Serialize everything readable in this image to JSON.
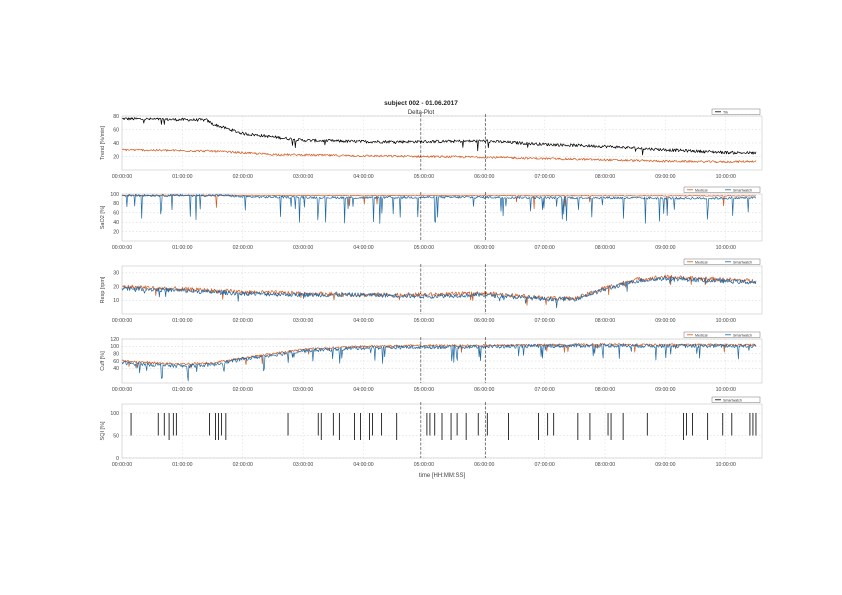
{
  "chart_data": {
    "type": "line",
    "title": "subject 002 - 01.06.2017",
    "subtitle": "Delta-Plot",
    "xlabel": "time [HH:MM:SS]",
    "x_ticks": [
      "00:00:00",
      "01:00:00",
      "02:00:00",
      "03:00:00",
      "04:00:00",
      "05:00:00",
      "06:00:00",
      "07:00:00",
      "08:00:00",
      "09:00:00",
      "10:00:00"
    ],
    "x_range_hours": [
      0,
      10.6
    ],
    "event_markers_hours": [
      4.95,
      6.02
    ],
    "panels": [
      {
        "ylabel": "Trend [%/min]",
        "ylim": [
          0,
          80
        ],
        "yticks": [
          "80",
          "60",
          "40",
          "20"
        ],
        "legend": [
          "Trk"
        ],
        "series": [
          {
            "name": "Trk",
            "color": "#000000",
            "anchors": [
              [
                0,
                76
              ],
              [
                1.4,
                74
              ],
              [
                1.5,
                68
              ],
              [
                2.0,
                54
              ],
              [
                3.0,
                44
              ],
              [
                4.0,
                42
              ],
              [
                5.0,
                42
              ],
              [
                6.0,
                43
              ],
              [
                7.0,
                38
              ],
              [
                8.0,
                35
              ],
              [
                9.0,
                30
              ],
              [
                10.0,
                26
              ],
              [
                10.5,
                25
              ]
            ]
          },
          {
            "name": "",
            "color": "#d45a1e",
            "anchors": [
              [
                0,
                30
              ],
              [
                1.5,
                28
              ],
              [
                2.5,
                23
              ],
              [
                4.0,
                21
              ],
              [
                5.0,
                20
              ],
              [
                6.0,
                19
              ],
              [
                7.0,
                17
              ],
              [
                8.0,
                15
              ],
              [
                9.0,
                13
              ],
              [
                10.0,
                12
              ],
              [
                10.5,
                13
              ]
            ]
          }
        ]
      },
      {
        "ylabel": "SaO2 [%]",
        "ylim": [
          0,
          100
        ],
        "yticks": [
          "100",
          "80",
          "60",
          "40",
          "20"
        ],
        "legend": [
          "Medical",
          "Smartwatch"
        ],
        "series": [
          {
            "name": "Medical",
            "color": "#d45a1e",
            "anchors": [
              [
                0,
                97
              ],
              [
                10.5,
                96
              ]
            ]
          },
          {
            "name": "Smartwatch",
            "color": "#1f6aa5",
            "anchors": [
              [
                0,
                97
              ],
              [
                1.7,
                97
              ],
              [
                2.0,
                94
              ],
              [
                3.0,
                93
              ],
              [
                4.0,
                92
              ],
              [
                5.0,
                93
              ],
              [
                6.0,
                93
              ],
              [
                7.0,
                92
              ],
              [
                8.0,
                92
              ],
              [
                9.0,
                91
              ],
              [
                10.0,
                91
              ],
              [
                10.5,
                92
              ]
            ]
          }
        ]
      },
      {
        "ylabel": "Resp [rpm]",
        "ylim": [
          0,
          35
        ],
        "yticks": [
          "30",
          "20",
          "10"
        ],
        "legend": [
          "Medical",
          "Smartwatch"
        ],
        "series": [
          {
            "name": "Medical",
            "color": "#d45a1e",
            "anchors": [
              [
                0,
                20
              ],
              [
                1.0,
                18
              ],
              [
                2.0,
                16
              ],
              [
                3.0,
                15
              ],
              [
                4.0,
                14
              ],
              [
                5.0,
                14
              ],
              [
                6.0,
                15
              ],
              [
                7.0,
                12
              ],
              [
                7.5,
                11
              ],
              [
                8.0,
                19
              ],
              [
                8.5,
                25
              ],
              [
                9.0,
                27
              ],
              [
                10.0,
                25
              ],
              [
                10.5,
                24
              ]
            ]
          },
          {
            "name": "Smartwatch",
            "color": "#1f6aa5",
            "anchors": [
              [
                0,
                19
              ],
              [
                1.0,
                17
              ],
              [
                2.0,
                15
              ],
              [
                3.0,
                14
              ],
              [
                4.0,
                14
              ],
              [
                5.0,
                13
              ],
              [
                6.0,
                14
              ],
              [
                7.0,
                11
              ],
              [
                7.5,
                11
              ],
              [
                8.0,
                18
              ],
              [
                8.5,
                24
              ],
              [
                9.0,
                26
              ],
              [
                10.0,
                24
              ],
              [
                10.5,
                23
              ]
            ]
          }
        ]
      },
      {
        "ylabel": "Cuff [%]",
        "ylim": [
          0,
          120
        ],
        "yticks": [
          "120",
          "100",
          "80",
          "60",
          "40"
        ],
        "legend": [
          "Medical",
          "Smartwatch"
        ],
        "series": [
          {
            "name": "Medical",
            "color": "#d45a1e",
            "anchors": [
              [
                0,
                60
              ],
              [
                0.5,
                55
              ],
              [
                1.0,
                52
              ],
              [
                1.5,
                55
              ],
              [
                2.0,
                68
              ],
              [
                3.0,
                92
              ],
              [
                4.0,
                100
              ],
              [
                5.0,
                102
              ],
              [
                6.0,
                102
              ],
              [
                7.0,
                104
              ],
              [
                8.0,
                105
              ],
              [
                9.0,
                104
              ],
              [
                10.0,
                104
              ],
              [
                10.5,
                104
              ]
            ]
          },
          {
            "name": "Smartwatch",
            "color": "#1f6aa5",
            "anchors": [
              [
                0,
                55
              ],
              [
                0.5,
                50
              ],
              [
                1.0,
                46
              ],
              [
                1.5,
                50
              ],
              [
                2.0,
                65
              ],
              [
                3.0,
                88
              ],
              [
                4.0,
                96
              ],
              [
                5.0,
                98
              ],
              [
                6.0,
                99
              ],
              [
                7.0,
                101
              ],
              [
                8.0,
                102
              ],
              [
                9.0,
                101
              ],
              [
                10.0,
                101
              ],
              [
                10.5,
                101
              ]
            ]
          }
        ]
      },
      {
        "ylabel": "SQI [%]",
        "ylim": [
          0,
          120
        ],
        "yticks": [
          "100",
          "50",
          "0"
        ],
        "legend": [
          "Smartwatch"
        ],
        "event_spikes_hours": [
          0.15,
          0.6,
          0.7,
          0.78,
          0.85,
          0.9,
          1.45,
          1.55,
          1.6,
          1.65,
          1.72,
          2.75,
          3.25,
          3.3,
          3.5,
          3.6,
          3.85,
          3.95,
          4.1,
          4.15,
          4.3,
          4.55,
          5.05,
          5.1,
          5.18,
          5.3,
          5.45,
          5.55,
          5.7,
          5.9,
          6.05,
          6.4,
          6.9,
          7.05,
          7.15,
          7.55,
          7.75,
          8.05,
          8.1,
          8.3,
          8.7,
          9.3,
          9.35,
          9.45,
          9.7,
          9.95,
          10.1,
          10.4,
          10.45,
          10.5
        ]
      }
    ]
  }
}
